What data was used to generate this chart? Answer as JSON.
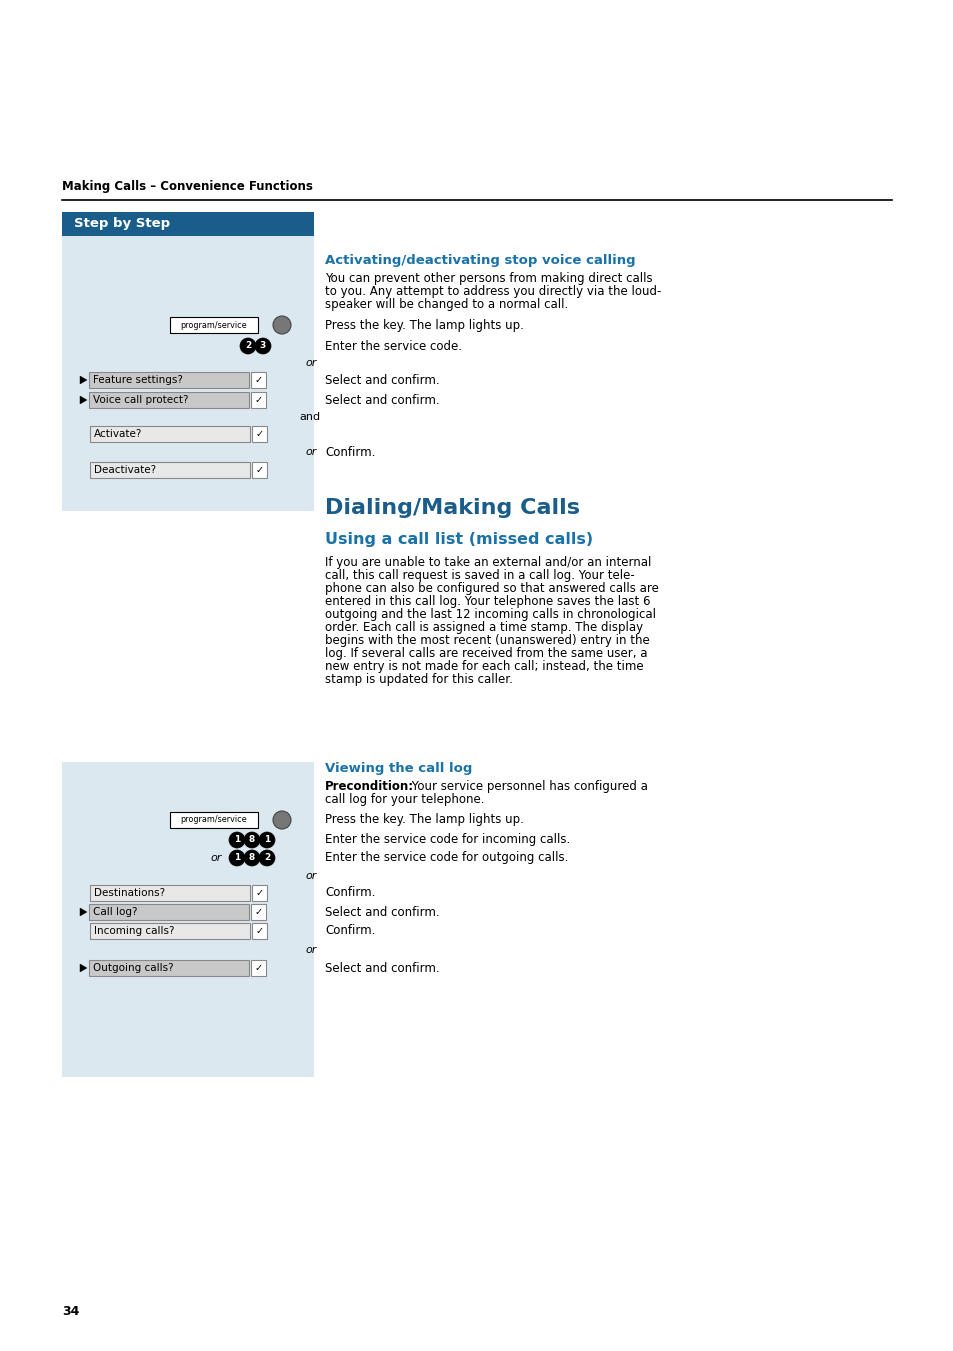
{
  "page_number": "34",
  "header_text": "Making Calls – Convenience Functions",
  "step_by_step_bg": "#1a5c8a",
  "step_by_step_text": "Step by Step",
  "left_panel_bg": "#dce8f0",
  "section1_title": "Activating/deactivating stop voice calling",
  "section1_title_color": "#1a72a8",
  "section1_body1": "You can prevent other persons from making direct calls",
  "section1_body2": "to you. Any attempt to address you directly via the loud-",
  "section1_body3": "speaker will be changed to a normal call.",
  "section1_press": "Press the key. The lamp lights up.",
  "section1_enter": "Enter the service code.",
  "section1_or1": "or",
  "section1_row1_label": "Feature settings?",
  "section1_row1_action": "Select and confirm.",
  "section1_row2_label": "Voice call protect?",
  "section1_row2_action": "Select and confirm.",
  "section1_and": "and",
  "section1_activate_label": "Activate?",
  "section1_or2": "or",
  "section1_deactivate_label": "Deactivate?",
  "section1_confirm": "Confirm.",
  "section2_title": "Dialing/Making Calls",
  "section2_title_color": "#1a5c8a",
  "section3_title": "Using a call list (missed calls)",
  "section3_title_color": "#1a72a8",
  "section3_body1": "If you are unable to take an external and/or an internal",
  "section3_body2": "call, this call request is saved in a call log. Your tele-",
  "section3_body3": "phone can also be configured so that answered calls are",
  "section3_body4": "entered in this call log. Your telephone saves the last 6",
  "section3_body5": "outgoing and the last 12 incoming calls in chronological",
  "section3_body6": "order. Each call is assigned a time stamp. The display",
  "section3_body7": "begins with the most recent (unanswered) entry in the",
  "section3_body8": "log. If several calls are received from the same user, a",
  "section3_body9": "new entry is not made for each call; instead, the time",
  "section3_body10": "stamp is updated for this caller.",
  "section4_title": "Viewing the call log",
  "section4_title_color": "#1a72a8",
  "section4_pre_bold": "Precondition:",
  "section4_pre_normal": " Your service personnel has configured a",
  "section4_pre_normal2": "call log for your telephone.",
  "section4_press": "Press the key. The lamp lights up.",
  "section4_181_text": "Enter the service code for incoming calls.",
  "section4_or_182": "or",
  "section4_182_text": "Enter the service code for outgoing calls.",
  "section4_or3": "or",
  "section4_dest_label": "Destinations?",
  "section4_dest_action": "Confirm.",
  "section4_calllog_label": "Call log?",
  "section4_calllog_action": "Select and confirm.",
  "section4_incoming_label": "Incoming calls?",
  "section4_incoming_action": "Confirm.",
  "section4_or4": "or",
  "section4_outgoing_label": "Outgoing calls?",
  "section4_outgoing_action": "Select and confirm.",
  "bg_color": "#ffffff",
  "text_color": "#000000"
}
